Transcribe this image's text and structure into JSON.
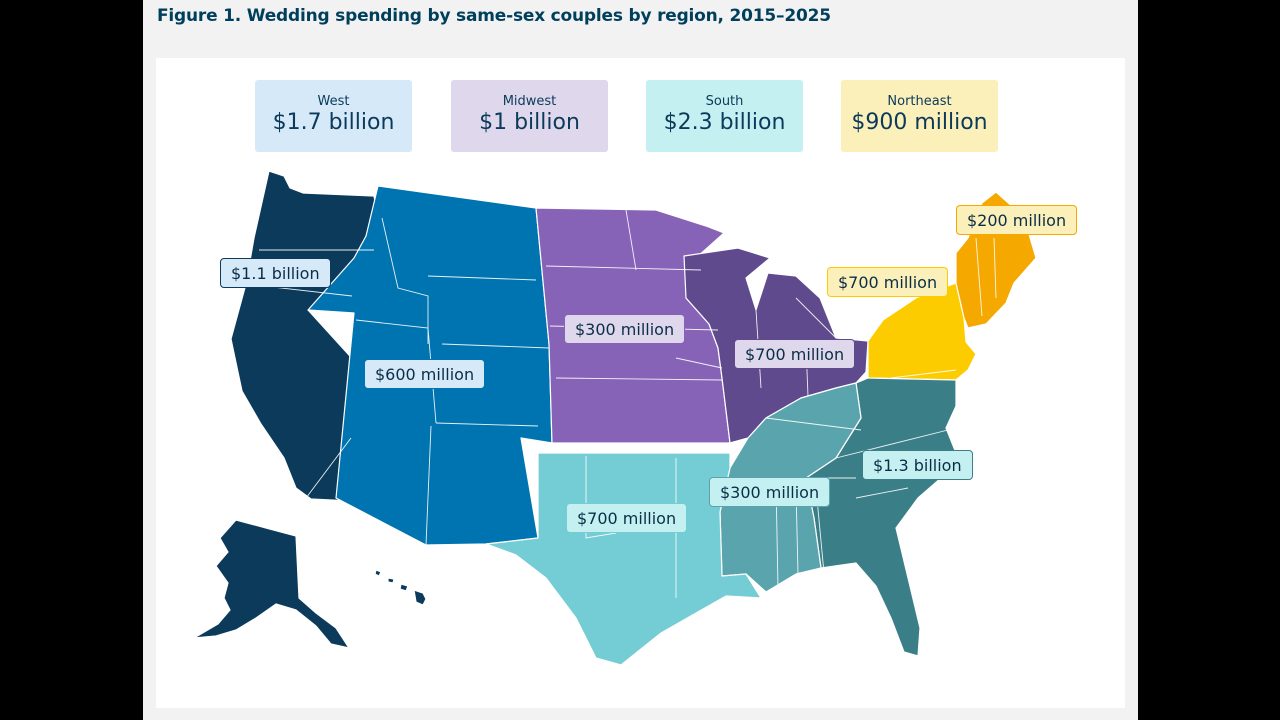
{
  "title": "Figure 1. Wedding spending by same-sex couples by region, 2015–2025",
  "regions": [
    {
      "name": "West",
      "value": "$1.7 billion",
      "box_color": "#d6e9f8"
    },
    {
      "name": "Midwest",
      "value": "$1 billion",
      "box_color": "#dfd8ec"
    },
    {
      "name": "South",
      "value": "$2.3 billion",
      "box_color": "#c5f0f2"
    },
    {
      "name": "Northeast",
      "value": "$900 million",
      "box_color": "#fbefba"
    }
  ],
  "subregion_labels": {
    "pacific": "$1.1 billion",
    "mountain": "$600 million",
    "west_north_central": "$300 million",
    "east_north_central": "$700 million",
    "middle_atlantic": "$700 million",
    "new_england": "$200 million",
    "south_atlantic": "$1.3 billion",
    "east_south_central": "$300 million",
    "west_south_central": "$700 million"
  },
  "colors": {
    "pacific": "#0b3a5a",
    "mountain": "#0074b0",
    "west_north_central": "#8763b8",
    "east_north_central": "#604a8e",
    "new_england": "#f5a800",
    "middle_atlantic": "#fdcc00",
    "south_atlantic": "#3a7f88",
    "east_south_central": "#5aa4ad",
    "west_south_central": "#74cdd4"
  }
}
